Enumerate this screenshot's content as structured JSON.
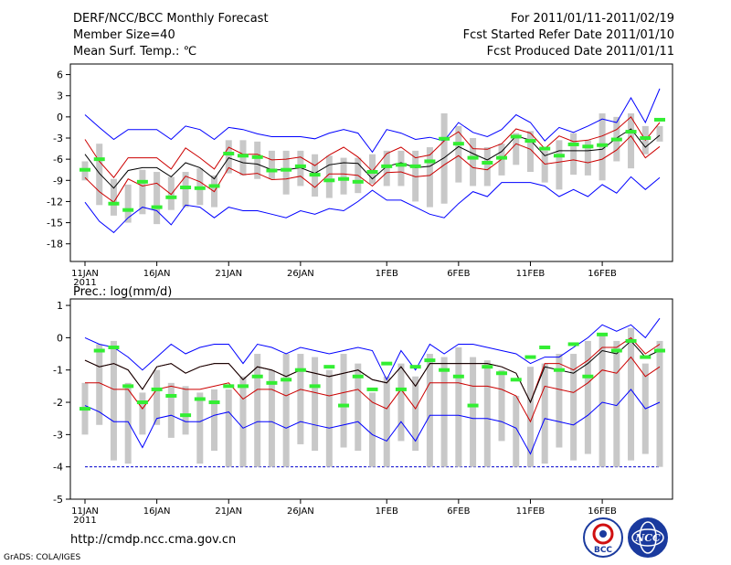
{
  "header": {
    "title": "DERF/NCC/BCC Monthly Forecast",
    "member_size": "Member Size=40",
    "variable1": "Mean Surf. Temp.: ℃",
    "period": "For 2011/01/11-2011/02/19",
    "started": "Fcst Started Refer Date 2011/01/10",
    "produced": "Fcst Produced Date 2011/01/11"
  },
  "footer": {
    "url": "http://cmdp.ncc.cma.gov.cn",
    "grads": "GrADS: COLA/IGES",
    "logo_bcc": "BCC",
    "logo_ncc": "NCC"
  },
  "colors": {
    "max": "#0000ff",
    "min": "#0000ff",
    "band": "#cc0000",
    "mean": "#000000",
    "box": "#c8c8c8",
    "median": "#33ee33",
    "zero_line": "#0000cc"
  },
  "chart_data": [
    {
      "type": "box",
      "name": "temperature",
      "title": "Mean Surf. Temp.: ℃",
      "ylim": [
        -20.5,
        7.5
      ],
      "yticks": [
        6,
        3,
        0,
        -3,
        -6,
        -9,
        -12,
        -15,
        -18
      ],
      "xticks": [
        {
          "day": 0,
          "label": "11JAN",
          "sub": "2011"
        },
        {
          "day": 5,
          "label": "16JAN"
        },
        {
          "day": 10,
          "label": "21JAN"
        },
        {
          "day": 15,
          "label": "26JAN"
        },
        {
          "day": 21,
          "label": "1FEB"
        },
        {
          "day": 26,
          "label": "6FEB"
        },
        {
          "day": 31,
          "label": "11FEB"
        },
        {
          "day": 36,
          "label": "16FEB"
        }
      ],
      "max": [
        0.3,
        -1.5,
        -3.2,
        -1.8,
        -1.8,
        -1.8,
        -3.2,
        -1.3,
        -1.8,
        -3.2,
        -1.5,
        -1.8,
        -2.4,
        -2.8,
        -2.8,
        -2.8,
        -3.1,
        -2.3,
        -1.8,
        -2.3,
        -5.0,
        -1.8,
        -2.3,
        -3.2,
        -2.9,
        -3.4,
        -0.8,
        -2.2,
        -2.8,
        -1.8,
        0.3,
        -0.8,
        -3.4,
        -1.5,
        -2.2,
        -1.3,
        -0.3,
        -0.8,
        2.7,
        -0.8,
        4.0
      ],
      "upper": [
        -3.2,
        -6.3,
        -8.6,
        -5.8,
        -5.8,
        -5.8,
        -7.4,
        -4.4,
        -5.8,
        -7.4,
        -4.3,
        -5.3,
        -5.3,
        -6.1,
        -6.0,
        -5.7,
        -6.9,
        -5.4,
        -4.3,
        -5.7,
        -7.7,
        -5.2,
        -4.3,
        -5.8,
        -5.4,
        -3.4,
        -2.1,
        -4.5,
        -4.6,
        -3.8,
        -1.7,
        -2.3,
        -4.5,
        -2.7,
        -3.5,
        -3.3,
        -2.7,
        -1.8,
        0.0,
        -3.3,
        -0.8
      ],
      "mean": [
        -5.3,
        -8.0,
        -10.1,
        -7.6,
        -7.2,
        -7.2,
        -8.5,
        -6.5,
        -7.2,
        -8.8,
        -5.8,
        -6.5,
        -6.7,
        -7.5,
        -7.5,
        -7.2,
        -8.0,
        -6.8,
        -6.5,
        -6.6,
        -8.8,
        -7.0,
        -6.5,
        -7.2,
        -7.0,
        -5.8,
        -4.2,
        -5.2,
        -6.1,
        -4.9,
        -2.7,
        -3.3,
        -5.5,
        -4.8,
        -4.8,
        -4.8,
        -4.6,
        -3.0,
        -1.7,
        -4.3,
        -2.6
      ],
      "lower": [
        -8.6,
        -10.6,
        -12.1,
        -8.8,
        -9.8,
        -9.4,
        -11.0,
        -8.4,
        -9.2,
        -10.6,
        -7.2,
        -8.2,
        -8.0,
        -8.9,
        -8.8,
        -8.4,
        -10.0,
        -8.1,
        -8.1,
        -8.3,
        -9.8,
        -7.9,
        -7.8,
        -8.5,
        -8.3,
        -6.8,
        -5.5,
        -7.2,
        -7.5,
        -6.0,
        -3.8,
        -4.6,
        -6.7,
        -6.4,
        -6.1,
        -6.5,
        -6.0,
        -4.7,
        -2.7,
        -5.8,
        -4.2
      ],
      "min": [
        -12.1,
        -14.8,
        -16.4,
        -14.3,
        -12.8,
        -13.3,
        -15.3,
        -12.5,
        -12.8,
        -14.3,
        -12.8,
        -13.3,
        -13.3,
        -13.8,
        -14.3,
        -13.3,
        -13.8,
        -13.0,
        -13.3,
        -12.0,
        -10.4,
        -11.8,
        -11.8,
        -12.8,
        -13.8,
        -14.3,
        -12.3,
        -10.6,
        -11.3,
        -9.3,
        -9.3,
        -9.3,
        -9.8,
        -11.3,
        -10.3,
        -11.3,
        -9.6,
        -10.8,
        -8.5,
        -10.3,
        -8.6
      ],
      "box_top": [
        -6.3,
        -3.8,
        -8.8,
        -9.6,
        -7.5,
        -7.8,
        -8.5,
        -7.8,
        -7.3,
        -8.3,
        -3.3,
        -3.3,
        -3.5,
        -4.8,
        -4.8,
        -4.8,
        -5.3,
        -5.5,
        -5.8,
        -5.8,
        -5.3,
        -4.8,
        -4.8,
        -4.8,
        -4.3,
        0.5,
        -1.3,
        -3.0,
        -4.3,
        -3.8,
        -2.3,
        -2.0,
        -4.8,
        -3.3,
        -2.3,
        -3.3,
        0.5,
        0.0,
        0.5,
        -1.3,
        -1.3
      ],
      "box_bottom": [
        -9.0,
        -12.5,
        -14.0,
        -15.0,
        -13.8,
        -15.2,
        -13.2,
        -12.8,
        -12.5,
        -12.8,
        -8.0,
        -8.3,
        -8.8,
        -8.8,
        -11.0,
        -9.8,
        -11.3,
        -11.5,
        -11.0,
        -10.8,
        -9.5,
        -9.8,
        -9.8,
        -12.0,
        -12.8,
        -12.3,
        -9.3,
        -9.8,
        -9.8,
        -8.3,
        -6.8,
        -7.8,
        -9.3,
        -10.3,
        -8.2,
        -8.3,
        -9.0,
        -6.3,
        -7.3,
        -5.3,
        -3.5
      ],
      "median": [
        -7.5,
        -6.0,
        -12.3,
        -13.2,
        -9.2,
        -12.8,
        -11.4,
        -10.0,
        -10.1,
        -9.8,
        -5.2,
        -5.5,
        -5.7,
        -7.6,
        -7.5,
        -7.0,
        -8.2,
        -9.0,
        -8.8,
        -9.2,
        -7.8,
        -7.0,
        -6.8,
        -7.0,
        -6.3,
        -3.1,
        -3.8,
        -5.8,
        -6.5,
        -5.8,
        -2.8,
        -3.4,
        -4.5,
        -5.5,
        -3.9,
        -4.2,
        -4.0,
        -3.2,
        -2.1,
        -3.0,
        -0.4
      ]
    },
    {
      "type": "box",
      "name": "precipitation",
      "title": "Prec.: log(mm/d)",
      "ylim": [
        -5,
        1.2
      ],
      "yticks": [
        1,
        0,
        -1,
        -2,
        -3,
        -4,
        -5
      ],
      "xticks": [
        {
          "day": 0,
          "label": "11JAN",
          "sub": "2011"
        },
        {
          "day": 5,
          "label": "16JAN"
        },
        {
          "day": 10,
          "label": "21JAN"
        },
        {
          "day": 15,
          "label": "26JAN"
        },
        {
          "day": 21,
          "label": "1FEB"
        },
        {
          "day": 26,
          "label": "6FEB"
        },
        {
          "day": 31,
          "label": "11FEB"
        },
        {
          "day": 36,
          "label": "16FEB"
        }
      ],
      "lower_bound": -4,
      "max": [
        0.0,
        -0.2,
        -0.3,
        -0.6,
        -1.0,
        -0.6,
        -0.2,
        -0.5,
        -0.3,
        -0.2,
        -0.2,
        -0.8,
        -0.2,
        -0.3,
        -0.5,
        -0.3,
        -0.4,
        -0.5,
        -0.4,
        -0.3,
        -0.4,
        -1.3,
        -0.4,
        -1.0,
        -0.2,
        -0.5,
        -0.2,
        -0.2,
        -0.3,
        -0.4,
        -0.5,
        -0.8,
        -0.6,
        -0.6,
        -0.3,
        0.0,
        0.4,
        0.2,
        0.4,
        0.0,
        0.6
      ],
      "upper": [
        -0.7,
        -0.9,
        -0.8,
        -1.0,
        -1.6,
        -0.9,
        -0.8,
        -1.1,
        -0.9,
        -0.8,
        -0.8,
        -1.3,
        -0.9,
        -1.0,
        -1.2,
        -1.0,
        -1.1,
        -1.2,
        -1.1,
        -1.0,
        -1.3,
        -1.4,
        -0.9,
        -1.5,
        -0.8,
        -0.8,
        -0.8,
        -0.8,
        -0.8,
        -0.9,
        -1.1,
        -2.0,
        -0.8,
        -0.8,
        -1.0,
        -0.7,
        -0.3,
        -0.3,
        0.0,
        -0.5,
        -0.2
      ],
      "mean": [
        -0.7,
        -0.9,
        -0.8,
        -1.0,
        -1.6,
        -0.9,
        -0.8,
        -1.1,
        -0.9,
        -0.8,
        -0.8,
        -1.3,
        -0.9,
        -1.0,
        -1.2,
        -1.0,
        -1.1,
        -1.2,
        -1.1,
        -1.0,
        -1.3,
        -1.4,
        -0.9,
        -1.5,
        -0.8,
        -0.8,
        -0.8,
        -0.8,
        -0.8,
        -0.9,
        -1.1,
        -2.0,
        -0.9,
        -1.0,
        -1.1,
        -0.8,
        -0.4,
        -0.5,
        -0.1,
        -0.6,
        -0.4
      ],
      "lower": [
        -1.4,
        -1.4,
        -1.6,
        -1.6,
        -2.2,
        -1.6,
        -1.5,
        -1.6,
        -1.6,
        -1.5,
        -1.4,
        -1.9,
        -1.6,
        -1.6,
        -1.8,
        -1.6,
        -1.7,
        -1.8,
        -1.7,
        -1.6,
        -2.0,
        -2.2,
        -1.6,
        -2.2,
        -1.4,
        -1.4,
        -1.4,
        -1.5,
        -1.5,
        -1.6,
        -1.8,
        -2.6,
        -1.5,
        -1.6,
        -1.7,
        -1.4,
        -1.0,
        -1.1,
        -0.6,
        -1.2,
        -0.9
      ],
      "min": [
        -2.1,
        -2.3,
        -2.6,
        -2.6,
        -3.4,
        -2.5,
        -2.4,
        -2.6,
        -2.6,
        -2.4,
        -2.3,
        -2.8,
        -2.6,
        -2.6,
        -2.8,
        -2.6,
        -2.7,
        -2.8,
        -2.7,
        -2.6,
        -3.0,
        -3.2,
        -2.6,
        -3.2,
        -2.4,
        -2.4,
        -2.4,
        -2.5,
        -2.5,
        -2.6,
        -2.8,
        -3.6,
        -2.5,
        -2.6,
        -2.7,
        -2.4,
        -2.0,
        -2.1,
        -1.6,
        -2.2,
        -2.0
      ],
      "box_top": [
        -1.4,
        -0.2,
        -0.1,
        -1.4,
        -1.7,
        -1.0,
        -1.4,
        -1.5,
        -1.7,
        -1.6,
        -1.6,
        -1.2,
        -0.5,
        -1.0,
        -0.5,
        -0.5,
        -0.6,
        -1.0,
        -0.5,
        -0.8,
        -1.7,
        -1.2,
        -0.8,
        -1.2,
        -0.5,
        -0.6,
        -0.3,
        -0.6,
        -0.7,
        -1.0,
        -1.8,
        -0.9,
        -0.8,
        -0.5,
        -0.5,
        -0.1,
        0.1,
        -0.1,
        0.3,
        -0.8,
        -0.1
      ],
      "box_bottom": [
        -3.0,
        -2.7,
        -3.8,
        -3.9,
        -3.0,
        -2.7,
        -3.1,
        -3.0,
        -3.9,
        -3.5,
        -4.0,
        -4.0,
        -4.0,
        -4.0,
        -4.0,
        -3.3,
        -3.5,
        -4.0,
        -3.4,
        -3.5,
        -4.0,
        -4.0,
        -3.2,
        -3.5,
        -4.0,
        -4.0,
        -4.0,
        -4.0,
        -4.0,
        -3.2,
        -4.0,
        -4.0,
        -3.9,
        -3.4,
        -3.8,
        -3.6,
        -4.0,
        -4.0,
        -3.8,
        -3.6,
        -4.0
      ],
      "median": [
        -2.2,
        -0.4,
        -0.3,
        -1.5,
        -2.0,
        -1.6,
        -1.8,
        -2.4,
        -1.9,
        -2.0,
        -1.5,
        -1.5,
        -1.2,
        -1.4,
        -1.3,
        -1.0,
        -1.5,
        -0.9,
        -2.1,
        -1.2,
        -1.6,
        -0.8,
        -1.6,
        -0.9,
        -0.7,
        -1.0,
        -1.2,
        -2.1,
        -0.9,
        -1.1,
        -1.3,
        -0.6,
        -0.3,
        -1.0,
        -0.2,
        -1.2,
        0.1,
        -0.4,
        -0.1,
        -0.6,
        -0.4
      ]
    }
  ]
}
